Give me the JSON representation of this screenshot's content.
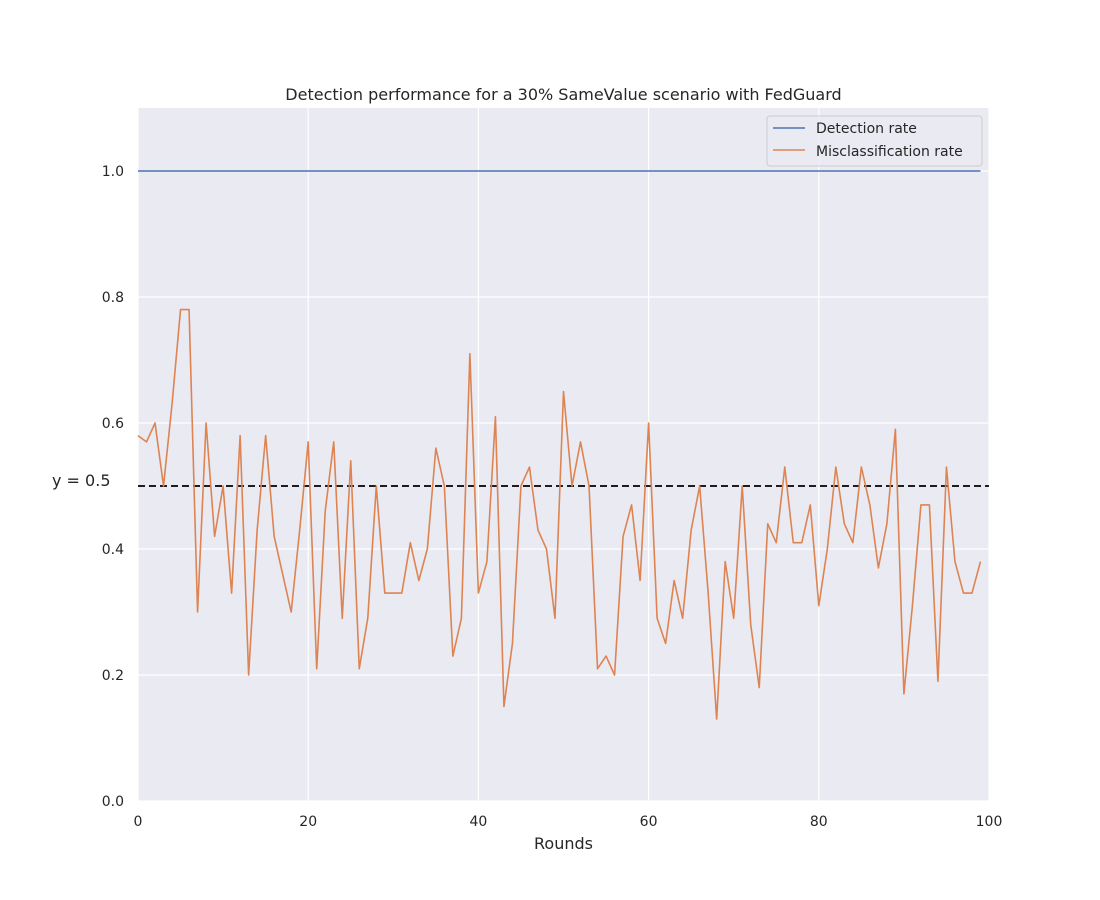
{
  "chart_data": {
    "type": "line",
    "title": "Detection performance for a 30% SameValue scenario with FedGuard",
    "xlabel": "Rounds",
    "ylabel": "",
    "xlim": [
      0,
      100
    ],
    "ylim": [
      0,
      1.1
    ],
    "xticks": [
      0,
      20,
      40,
      60,
      80,
      100
    ],
    "yticks": [
      0.0,
      0.2,
      0.4,
      0.6,
      0.8,
      1.0
    ],
    "ytick_labels": [
      "0.0",
      "0.2",
      "0.4",
      "0.6",
      "0.8",
      "1.0"
    ],
    "grid": true,
    "legend_position": "top-right",
    "reference_line": {
      "y": 0.5,
      "label": "y = 0.5",
      "style": "dashed",
      "color": "#000000"
    },
    "series": [
      {
        "name": "Detection rate",
        "color": "#4c72b0",
        "x": [
          0,
          99
        ],
        "values": [
          1.0,
          1.0
        ]
      },
      {
        "name": "Misclassification rate",
        "color": "#dd8452",
        "x": [
          0,
          1,
          2,
          3,
          4,
          5,
          6,
          7,
          8,
          9,
          10,
          11,
          12,
          13,
          14,
          15,
          16,
          17,
          18,
          19,
          20,
          21,
          22,
          23,
          24,
          25,
          26,
          27,
          28,
          29,
          30,
          31,
          32,
          33,
          34,
          35,
          36,
          37,
          38,
          39,
          40,
          41,
          42,
          43,
          44,
          45,
          46,
          47,
          48,
          49,
          50,
          51,
          52,
          53,
          54,
          55,
          56,
          57,
          58,
          59,
          60,
          61,
          62,
          63,
          64,
          65,
          66,
          67,
          68,
          69,
          70,
          71,
          72,
          73,
          74,
          75,
          76,
          77,
          78,
          79,
          80,
          81,
          82,
          83,
          84,
          85,
          86,
          87,
          88,
          89,
          90,
          91,
          92,
          93,
          94,
          95,
          96,
          97,
          98,
          99
        ],
        "values": [
          0.58,
          0.57,
          0.6,
          0.5,
          0.63,
          0.78,
          0.78,
          0.3,
          0.6,
          0.42,
          0.5,
          0.33,
          0.58,
          0.2,
          0.43,
          0.58,
          0.42,
          0.36,
          0.3,
          0.43,
          0.57,
          0.21,
          0.46,
          0.57,
          0.29,
          0.54,
          0.21,
          0.29,
          0.5,
          0.33,
          0.33,
          0.33,
          0.41,
          0.35,
          0.4,
          0.56,
          0.5,
          0.23,
          0.29,
          0.71,
          0.33,
          0.38,
          0.61,
          0.15,
          0.25,
          0.5,
          0.53,
          0.43,
          0.4,
          0.29,
          0.65,
          0.5,
          0.57,
          0.5,
          0.21,
          0.23,
          0.2,
          0.42,
          0.47,
          0.35,
          0.6,
          0.29,
          0.25,
          0.35,
          0.29,
          0.43,
          0.5,
          0.33,
          0.13,
          0.38,
          0.29,
          0.5,
          0.28,
          0.18,
          0.44,
          0.41,
          0.53,
          0.41,
          0.41,
          0.47,
          0.31,
          0.4,
          0.53,
          0.44,
          0.41,
          0.53,
          0.47,
          0.37,
          0.44,
          0.59,
          0.17,
          0.31,
          0.47,
          0.47,
          0.19,
          0.53,
          0.38,
          0.33,
          0.33,
          0.38
        ]
      }
    ]
  }
}
